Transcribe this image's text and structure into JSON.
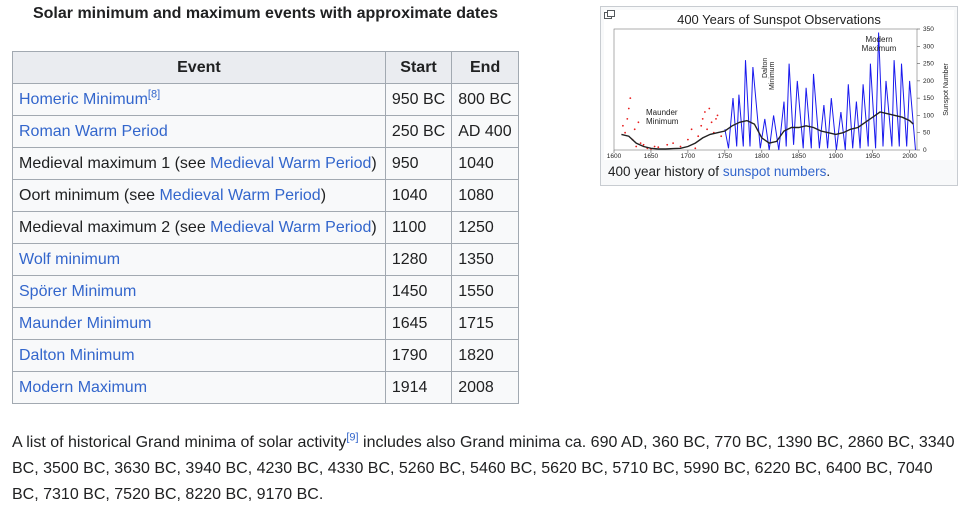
{
  "table": {
    "caption": "Solar minimum and maximum events with approximate dates",
    "headers": [
      "Event",
      "Start",
      "End"
    ],
    "rows": [
      {
        "parts": [
          {
            "text": "Homeric Minimum",
            "link": true
          }
        ],
        "ref": "[8]",
        "start": "950 BC",
        "end": "800 BC"
      },
      {
        "parts": [
          {
            "text": "Roman Warm Period",
            "link": true
          }
        ],
        "start": "250 BC",
        "end": "AD 400"
      },
      {
        "parts": [
          {
            "text": "Medieval maximum 1 (see ",
            "link": false
          },
          {
            "text": "Medieval Warm Period",
            "link": true
          },
          {
            "text": ")",
            "link": false
          }
        ],
        "start": "950",
        "end": "1040"
      },
      {
        "parts": [
          {
            "text": "Oort minimum (see ",
            "link": false
          },
          {
            "text": "Medieval Warm Period",
            "link": true
          },
          {
            "text": ")",
            "link": false
          }
        ],
        "start": "1040",
        "end": "1080"
      },
      {
        "parts": [
          {
            "text": "Medieval maximum 2 (see ",
            "link": false
          },
          {
            "text": "Medieval Warm Period",
            "link": true
          },
          {
            "text": ")",
            "link": false
          }
        ],
        "start": "1100",
        "end": "1250"
      },
      {
        "parts": [
          {
            "text": "Wolf minimum",
            "link": true
          }
        ],
        "start": "1280",
        "end": "1350"
      },
      {
        "parts": [
          {
            "text": "Spörer Minimum",
            "link": true
          }
        ],
        "start": "1450",
        "end": "1550"
      },
      {
        "parts": [
          {
            "text": "Maunder Minimum",
            "link": true
          }
        ],
        "start": "1645",
        "end": "1715"
      },
      {
        "parts": [
          {
            "text": "Dalton Minimum",
            "link": true
          }
        ],
        "start": "1790",
        "end": "1820"
      },
      {
        "parts": [
          {
            "text": "Modern Maximum",
            "link": true
          }
        ],
        "start": "1914",
        "end": "2008"
      }
    ]
  },
  "paragraph": {
    "before_ref": "A list of historical Grand minima of solar activity",
    "ref": "[9]",
    "after_ref": " includes also Grand minima ca. 690 AD, 360 BC, 770 BC, 1390 BC, 2860 BC, 3340 BC, 3500 BC, 3630 BC, 3940 BC, 4230 BC, 4330 BC, 5260 BC, 5460 BC, 5620 BC, 5710 BC, 5990 BC, 6220 BC, 6400 BC, 7040 BC, 7310 BC, 7520 BC, 8220 BC, 9170 BC."
  },
  "figure": {
    "caption_text": "400 year history of ",
    "caption_link": "sunspot numbers",
    "caption_end": ".",
    "magnify_icon": "magnify-clip-icon",
    "chart_data": {
      "type": "line",
      "title": "400 Years of Sunspot Observations",
      "ylabel": "Sunspot Number",
      "xlabel": "",
      "xlim": [
        1600,
        2010
      ],
      "ylim": [
        0,
        350
      ],
      "xticks": [
        1600,
        1650,
        1700,
        1750,
        1800,
        1850,
        1900,
        1950,
        2000
      ],
      "yticks": [
        0,
        50,
        100,
        150,
        200,
        250,
        300,
        350
      ],
      "annotations": [
        "Maunder Minimum",
        "Dalton Minimum",
        "Modern Maximum"
      ],
      "series": [
        {
          "color": "#1a1aee",
          "style": "monthly",
          "x": [
            1750,
            1755,
            1761,
            1766,
            1769,
            1775,
            1778,
            1784,
            1788,
            1798,
            1804,
            1810,
            1816,
            1823,
            1830,
            1833,
            1837,
            1843,
            1848,
            1856,
            1860,
            1867,
            1870,
            1878,
            1884,
            1889,
            1894,
            1901,
            1907,
            1913,
            1917,
            1923,
            1928,
            1933,
            1937,
            1944,
            1947,
            1954,
            1958,
            1964,
            1968,
            1976,
            1979,
            1986,
            1989,
            1996,
            2000,
            2008
          ],
          "y": [
            60,
            5,
            150,
            10,
            160,
            10,
            260,
            10,
            240,
            5,
            90,
            0,
            100,
            0,
            140,
            10,
            250,
            15,
            200,
            5,
            180,
            5,
            220,
            5,
            130,
            5,
            150,
            0,
            110,
            0,
            190,
            5,
            140,
            5,
            190,
            10,
            250,
            5,
            340,
            10,
            200,
            10,
            260,
            10,
            250,
            10,
            200,
            0
          ]
        },
        {
          "color": "#222222",
          "style": "smoothed",
          "x": [
            1610,
            1620,
            1630,
            1640,
            1650,
            1660,
            1670,
            1680,
            1690,
            1700,
            1710,
            1720,
            1730,
            1740,
            1750,
            1760,
            1770,
            1780,
            1790,
            1800,
            1810,
            1820,
            1830,
            1840,
            1850,
            1860,
            1870,
            1880,
            1890,
            1900,
            1910,
            1920,
            1930,
            1940,
            1950,
            1960,
            1970,
            1980,
            1990,
            2000,
            2005
          ],
          "y": [
            45,
            40,
            20,
            10,
            5,
            3,
            3,
            4,
            5,
            10,
            20,
            35,
            45,
            50,
            55,
            70,
            80,
            85,
            75,
            35,
            20,
            25,
            55,
            65,
            65,
            70,
            65,
            55,
            50,
            45,
            50,
            60,
            65,
            80,
            95,
            110,
            105,
            100,
            95,
            85,
            75
          ]
        },
        {
          "color": "#e81c1c",
          "style": "scatter",
          "x": [
            1612,
            1615,
            1618,
            1620,
            1622,
            1625,
            1628,
            1630,
            1633,
            1636,
            1640,
            1645,
            1650,
            1655,
            1660,
            1672,
            1680,
            1690,
            1700,
            1705,
            1710,
            1714,
            1718,
            1720,
            1723,
            1726,
            1729,
            1732,
            1735,
            1738,
            1740,
            1745
          ],
          "y": [
            70,
            50,
            90,
            120,
            150,
            30,
            60,
            10,
            80,
            20,
            15,
            5,
            3,
            10,
            8,
            15,
            20,
            10,
            30,
            60,
            5,
            40,
            70,
            90,
            110,
            60,
            120,
            80,
            50,
            90,
            100,
            40
          ]
        }
      ]
    }
  }
}
